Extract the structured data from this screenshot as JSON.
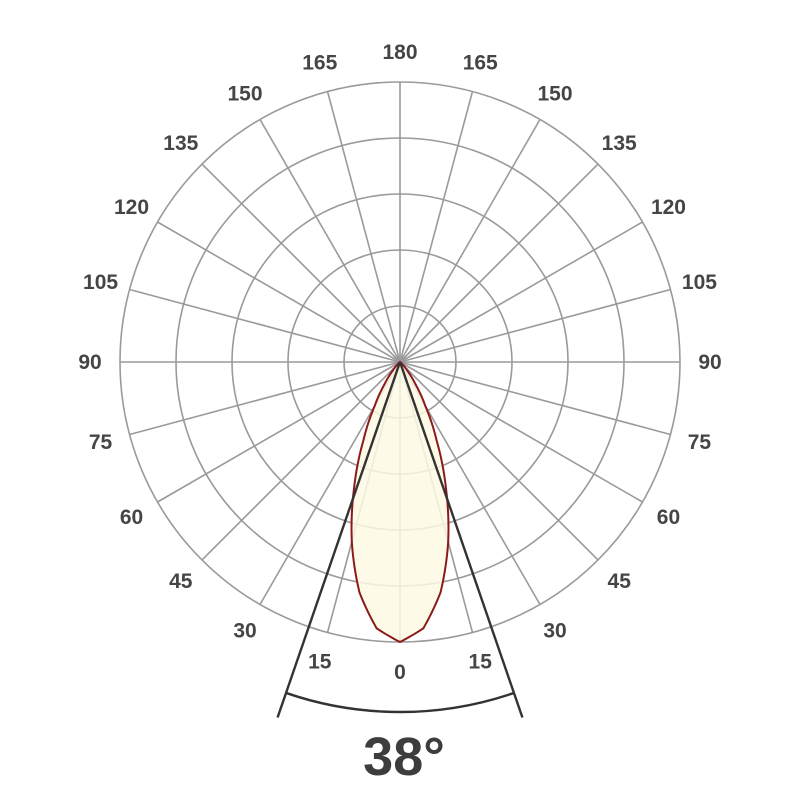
{
  "chart_data": {
    "type": "polar",
    "angle_unit": "degrees",
    "angle_labels": [
      "0",
      "15",
      "30",
      "45",
      "60",
      "75",
      "90",
      "105",
      "120",
      "135",
      "150",
      "165",
      "180"
    ],
    "angular_step": 15,
    "radial_rings": 5,
    "radial_range": [
      0,
      1
    ],
    "grid": true,
    "series": [
      {
        "angles": [
          0,
          5,
          10,
          15,
          20,
          25,
          30,
          35,
          40,
          45,
          50,
          60,
          90
        ],
        "values": [
          1.0,
          0.955,
          0.835,
          0.665,
          0.48,
          0.31,
          0.18,
          0.095,
          0.042,
          0.016,
          0.005,
          0.0,
          0.0
        ],
        "symmetric": true
      }
    ],
    "beam_angle": 38,
    "beam_angle_label": "38°",
    "colors": {
      "curve_stroke": "#8b1a1a",
      "curve_fill": "#fdf9e3",
      "grid": "#9a9a9a",
      "beam_lines": "#333333",
      "labels": "#454545"
    }
  }
}
